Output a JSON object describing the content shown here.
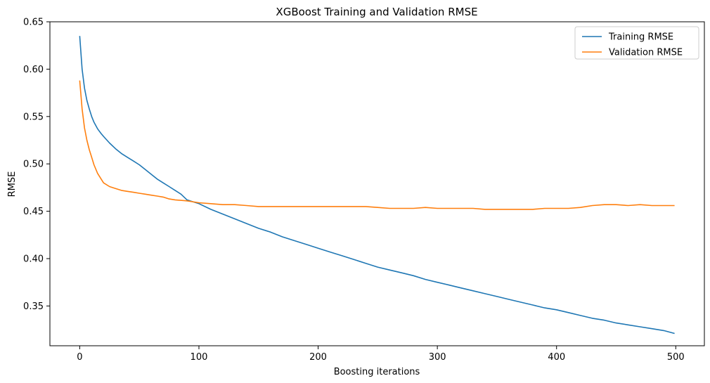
{
  "chart_data": {
    "type": "line",
    "title": "XGBoost Training and Validation RMSE",
    "xlabel": "Boosting iterations",
    "ylabel": "RMSE",
    "xlim": [
      -25,
      524
    ],
    "ylim": [
      0.308,
      0.65
    ],
    "xticks": [
      0,
      100,
      200,
      300,
      400,
      500
    ],
    "xtick_labels": [
      "0",
      "100",
      "200",
      "300",
      "400",
      "500"
    ],
    "yticks": [
      0.35,
      0.4,
      0.45,
      0.5,
      0.55,
      0.6,
      0.65
    ],
    "ytick_labels": [
      "0.35",
      "0.40",
      "0.45",
      "0.50",
      "0.55",
      "0.60",
      "0.65"
    ],
    "grid": false,
    "legend_position": "upper right",
    "series": [
      {
        "name": "Training RMSE",
        "color": "#1f77b4",
        "x": [
          0,
          2,
          4,
          6,
          8,
          10,
          12,
          15,
          18,
          20,
          25,
          30,
          35,
          40,
          45,
          50,
          55,
          60,
          65,
          70,
          75,
          80,
          85,
          90,
          95,
          100,
          110,
          120,
          130,
          140,
          150,
          160,
          170,
          180,
          190,
          200,
          210,
          220,
          230,
          240,
          250,
          260,
          270,
          280,
          290,
          300,
          310,
          320,
          330,
          340,
          350,
          360,
          370,
          380,
          390,
          400,
          410,
          420,
          430,
          440,
          450,
          460,
          470,
          480,
          490,
          499
        ],
        "y": [
          0.635,
          0.6,
          0.58,
          0.567,
          0.558,
          0.55,
          0.544,
          0.537,
          0.532,
          0.529,
          0.522,
          0.516,
          0.511,
          0.507,
          0.503,
          0.499,
          0.494,
          0.489,
          0.484,
          0.48,
          0.476,
          0.472,
          0.468,
          0.462,
          0.46,
          0.458,
          0.452,
          0.447,
          0.442,
          0.437,
          0.432,
          0.428,
          0.423,
          0.419,
          0.415,
          0.411,
          0.407,
          0.403,
          0.399,
          0.395,
          0.391,
          0.388,
          0.385,
          0.382,
          0.378,
          0.375,
          0.372,
          0.369,
          0.366,
          0.363,
          0.36,
          0.357,
          0.354,
          0.351,
          0.348,
          0.346,
          0.343,
          0.34,
          0.337,
          0.335,
          0.332,
          0.33,
          0.328,
          0.326,
          0.324,
          0.321
        ]
      },
      {
        "name": "Validation RMSE",
        "color": "#ff7f0e",
        "x": [
          0,
          2,
          4,
          6,
          8,
          10,
          12,
          15,
          18,
          20,
          25,
          30,
          35,
          40,
          45,
          50,
          55,
          60,
          65,
          70,
          75,
          80,
          90,
          100,
          110,
          120,
          130,
          140,
          150,
          160,
          170,
          180,
          190,
          200,
          210,
          220,
          230,
          240,
          250,
          260,
          270,
          280,
          290,
          300,
          310,
          320,
          330,
          340,
          350,
          360,
          370,
          380,
          390,
          400,
          410,
          420,
          430,
          440,
          450,
          460,
          470,
          480,
          490,
          499
        ],
        "y": [
          0.588,
          0.558,
          0.538,
          0.525,
          0.515,
          0.507,
          0.499,
          0.49,
          0.484,
          0.48,
          0.476,
          0.474,
          0.472,
          0.471,
          0.47,
          0.469,
          0.468,
          0.467,
          0.466,
          0.465,
          0.463,
          0.462,
          0.461,
          0.459,
          0.458,
          0.457,
          0.457,
          0.456,
          0.455,
          0.455,
          0.455,
          0.455,
          0.455,
          0.455,
          0.455,
          0.455,
          0.455,
          0.455,
          0.454,
          0.453,
          0.453,
          0.453,
          0.454,
          0.453,
          0.453,
          0.453,
          0.453,
          0.452,
          0.452,
          0.452,
          0.452,
          0.452,
          0.453,
          0.453,
          0.453,
          0.454,
          0.456,
          0.457,
          0.457,
          0.456,
          0.457,
          0.456,
          0.456,
          0.456
        ]
      }
    ]
  }
}
